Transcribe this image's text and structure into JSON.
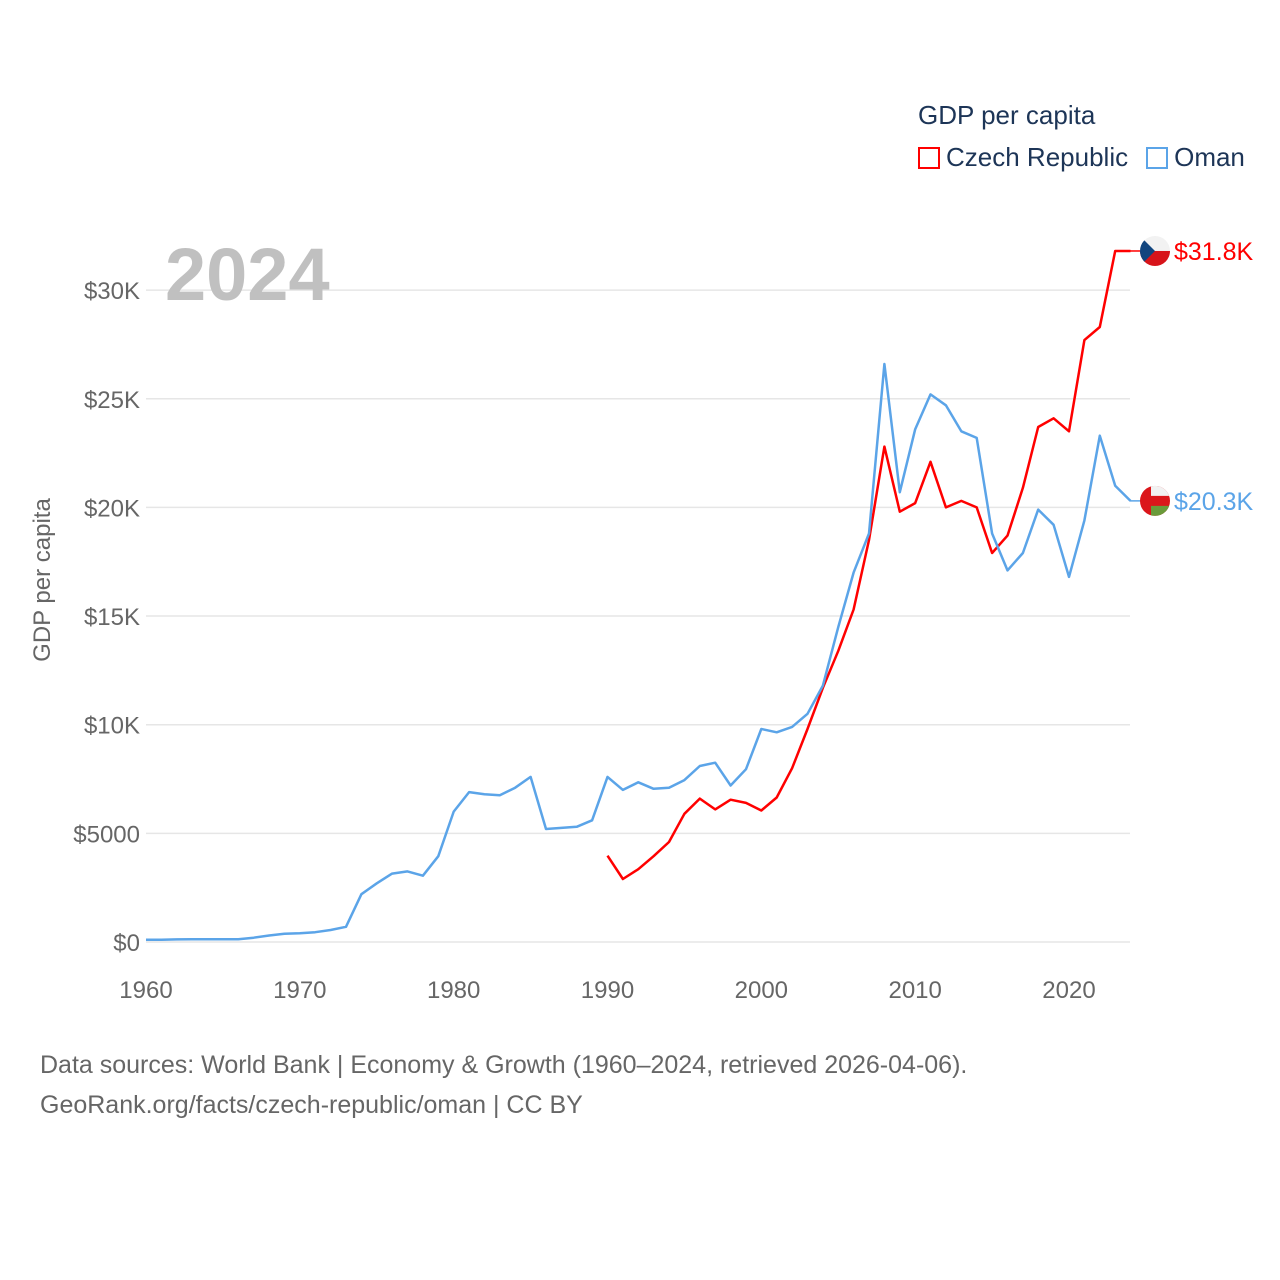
{
  "chart_data": {
    "type": "line",
    "title": "GDP per capita",
    "year_label": "2024",
    "xlabel": "",
    "ylabel": "GDP per capita",
    "xlim": [
      1960,
      2024
    ],
    "ylim": [
      0,
      32000
    ],
    "x_ticks": [
      1960,
      1970,
      1980,
      1990,
      2000,
      2010,
      2020
    ],
    "x_tick_labels": [
      "1960",
      "1970",
      "1980",
      "1990",
      "2000",
      "2010",
      "2020"
    ],
    "y_ticks": [
      0,
      5000,
      10000,
      15000,
      20000,
      25000,
      30000
    ],
    "y_tick_labels": [
      "$0",
      "$5000",
      "$10K",
      "$15K",
      "$20K",
      "$25K",
      "$30K"
    ],
    "grid": true,
    "legend_position": "top-right",
    "series": [
      {
        "name": "Czech Republic",
        "color": "#ff0000",
        "end_label": "$31.8K",
        "start_year": 1990,
        "values": [
          3970,
          2900,
          3350,
          3950,
          4600,
          5900,
          6600,
          6100,
          6550,
          6400,
          6050,
          6650,
          8000,
          9800,
          11700,
          13400,
          15300,
          18500,
          22800,
          19800,
          20200,
          22100,
          20000,
          20300,
          20000,
          17900,
          18700,
          20900,
          23700,
          24100,
          23500,
          27700,
          28300,
          31800,
          31800
        ]
      },
      {
        "name": "Oman",
        "color": "#5ba4e8",
        "end_label": "$20.3K",
        "start_year": 1960,
        "values": [
          100,
          100,
          120,
          130,
          130,
          130,
          130,
          200,
          300,
          380,
          400,
          450,
          550,
          700,
          2200,
          2700,
          3150,
          3250,
          3050,
          3950,
          6000,
          6900,
          6800,
          6750,
          7100,
          7600,
          5200,
          5250,
          5300,
          5600,
          7600,
          7000,
          7350,
          7050,
          7100,
          7450,
          8100,
          8250,
          7200,
          7950,
          9800,
          9650,
          9900,
          10500,
          11800,
          14500,
          17000,
          18800,
          26600,
          20700,
          23600,
          25200,
          24700,
          23500,
          23200,
          18800,
          17100,
          17900,
          19900,
          19200,
          16800,
          19400,
          23300,
          21000,
          20300
        ]
      }
    ]
  },
  "footer": {
    "line1": "Data sources: World Bank | Economy & Growth (1960–2024, retrieved 2026-04-06).",
    "line2": "GeoRank.org/facts/czech-republic/oman | CC BY"
  }
}
